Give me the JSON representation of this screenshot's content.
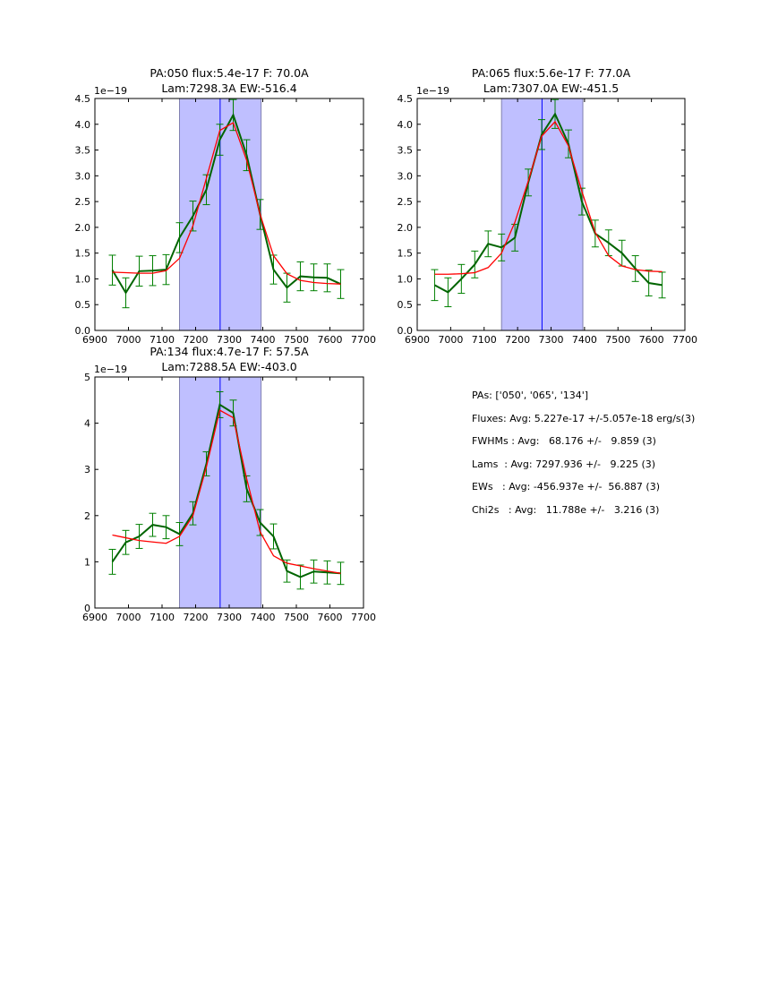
{
  "chart_data": [
    {
      "type": "line",
      "title_line1": "PA:050 flux:5.4e-17 F: 70.0A",
      "title_line2": "Lam:7298.3A EW:-516.4",
      "offset_label": "1e−19",
      "xlim": [
        6900,
        7700
      ],
      "ylim": [
        0,
        4.5
      ],
      "xticks": [
        6900,
        7000,
        7100,
        7200,
        7300,
        7400,
        7500,
        7600,
        7700
      ],
      "xtick_labels": [
        "6900",
        "7000",
        "7100",
        "7200",
        "7300",
        "7400",
        "7500",
        "7600",
        "7700"
      ],
      "yticks": [
        0,
        0.5,
        1,
        1.5,
        2,
        2.5,
        3,
        3.5,
        4,
        4.5
      ],
      "ytick_labels": [
        "0.0",
        "0.5",
        "1.0",
        "1.5",
        "2.0",
        "2.5",
        "3.0",
        "3.5",
        "4.0",
        "4.5"
      ],
      "shaded_span": [
        7152,
        7395
      ],
      "center_line": 7273,
      "x": [
        6952,
        6992,
        7032,
        7072,
        7112,
        7152,
        7192,
        7232,
        7272,
        7312,
        7352,
        7392,
        7432,
        7472,
        7512,
        7552,
        7592,
        7632
      ],
      "series": [
        {
          "name": "data",
          "color": "#006400",
          "values": [
            1.17,
            0.73,
            1.15,
            1.16,
            1.18,
            1.8,
            2.22,
            2.73,
            3.7,
            4.18,
            3.4,
            2.25,
            1.18,
            0.83,
            1.05,
            1.03,
            1.02,
            0.9
          ],
          "errors": [
            0.29,
            0.29,
            0.29,
            0.29,
            0.29,
            0.29,
            0.29,
            0.29,
            0.3,
            0.3,
            0.3,
            0.29,
            0.28,
            0.28,
            0.28,
            0.26,
            0.27,
            0.28
          ]
        },
        {
          "name": "fit",
          "color": "#ff0000",
          "values": [
            1.13,
            1.12,
            1.11,
            1.11,
            1.16,
            1.4,
            2.03,
            2.95,
            3.88,
            4.03,
            3.3,
            2.25,
            1.45,
            1.1,
            0.97,
            0.93,
            0.91,
            0.9
          ]
        }
      ]
    },
    {
      "type": "line",
      "title_line1": "PA:065 flux:5.6e-17 F: 77.0A",
      "title_line2": "Lam:7307.0A EW:-451.5",
      "offset_label": "1e−19",
      "xlim": [
        6900,
        7700
      ],
      "ylim": [
        0,
        4.5
      ],
      "xticks": [
        6900,
        7000,
        7100,
        7200,
        7300,
        7400,
        7500,
        7600,
        7700
      ],
      "xtick_labels": [
        "6900",
        "7000",
        "7100",
        "7200",
        "7300",
        "7400",
        "7500",
        "7600",
        "7700"
      ],
      "yticks": [
        0,
        0.5,
        1,
        1.5,
        2,
        2.5,
        3,
        3.5,
        4,
        4.5
      ],
      "ytick_labels": [
        "0.0",
        "0.5",
        "1.0",
        "1.5",
        "2.0",
        "2.5",
        "3.0",
        "3.5",
        "4.0",
        "4.5"
      ],
      "shaded_span": [
        7152,
        7395
      ],
      "center_line": 7273,
      "x": [
        6952,
        6992,
        7032,
        7072,
        7112,
        7152,
        7192,
        7232,
        7272,
        7312,
        7352,
        7392,
        7432,
        7472,
        7512,
        7552,
        7592,
        7632
      ],
      "series": [
        {
          "name": "data",
          "color": "#006400",
          "values": [
            0.88,
            0.74,
            1.0,
            1.28,
            1.68,
            1.61,
            1.8,
            2.87,
            3.8,
            4.2,
            3.62,
            2.5,
            1.88,
            1.7,
            1.5,
            1.2,
            0.92,
            0.88
          ],
          "errors": [
            0.3,
            0.28,
            0.28,
            0.26,
            0.25,
            0.26,
            0.26,
            0.26,
            0.29,
            0.28,
            0.27,
            0.26,
            0.26,
            0.25,
            0.25,
            0.25,
            0.25,
            0.25
          ]
        },
        {
          "name": "fit",
          "color": "#ff0000",
          "values": [
            1.09,
            1.09,
            1.1,
            1.12,
            1.22,
            1.5,
            2.1,
            2.9,
            3.77,
            4.05,
            3.58,
            2.7,
            1.9,
            1.45,
            1.25,
            1.18,
            1.15,
            1.14
          ]
        }
      ]
    },
    {
      "type": "line",
      "title_line1": "PA:134 flux:4.7e-17 F: 57.5A",
      "title_line2": "Lam:7288.5A EW:-403.0",
      "offset_label": "1e−19",
      "xlim": [
        6900,
        7700
      ],
      "ylim": [
        0,
        5
      ],
      "xticks": [
        6900,
        7000,
        7100,
        7200,
        7300,
        7400,
        7500,
        7600,
        7700
      ],
      "xtick_labels": [
        "6900",
        "7000",
        "7100",
        "7200",
        "7300",
        "7400",
        "7500",
        "7600",
        "7700"
      ],
      "yticks": [
        0,
        1,
        2,
        3,
        4,
        5
      ],
      "ytick_labels": [
        "0",
        "1",
        "2",
        "3",
        "4",
        "5"
      ],
      "shaded_span": [
        7152,
        7395
      ],
      "center_line": 7273,
      "x": [
        6952,
        6992,
        7032,
        7072,
        7112,
        7152,
        7192,
        7232,
        7272,
        7312,
        7352,
        7392,
        7432,
        7472,
        7512,
        7552,
        7592,
        7632
      ],
      "series": [
        {
          "name": "data",
          "color": "#006400",
          "values": [
            1.0,
            1.42,
            1.55,
            1.8,
            1.75,
            1.6,
            2.05,
            3.12,
            4.4,
            4.22,
            2.58,
            1.85,
            1.55,
            0.8,
            0.67,
            0.79,
            0.77,
            0.75
          ],
          "errors": [
            0.27,
            0.26,
            0.26,
            0.25,
            0.25,
            0.25,
            0.25,
            0.26,
            0.28,
            0.28,
            0.28,
            0.28,
            0.27,
            0.24,
            0.26,
            0.25,
            0.25,
            0.24
          ]
        },
        {
          "name": "fit",
          "color": "#ff0000",
          "values": [
            1.58,
            1.52,
            1.46,
            1.43,
            1.4,
            1.55,
            2.0,
            3.05,
            4.28,
            4.12,
            2.8,
            1.65,
            1.13,
            0.97,
            0.91,
            0.85,
            0.8,
            0.75
          ]
        }
      ]
    }
  ],
  "colors": {
    "shade": "#bfbfff",
    "shade_edge": "#8080b0",
    "center_line": "#0000ff",
    "errorbar": "#008000"
  },
  "stats": {
    "pas": "PAs: ['050', '065', '134']",
    "fluxes": "Fluxes: Avg: 5.227e-17 +/-5.057e-18 erg/s(3)",
    "fwhms": "FWHMs : Avg:   68.176 +/-   9.859 (3)",
    "lams": "Lams  : Avg: 7297.936 +/-   9.225 (3)",
    "ews": "EWs   : Avg: -456.937e +/-  56.887 (3)",
    "chi2s": "Chi2s   : Avg:   11.788e +/-   3.216 (3)"
  }
}
